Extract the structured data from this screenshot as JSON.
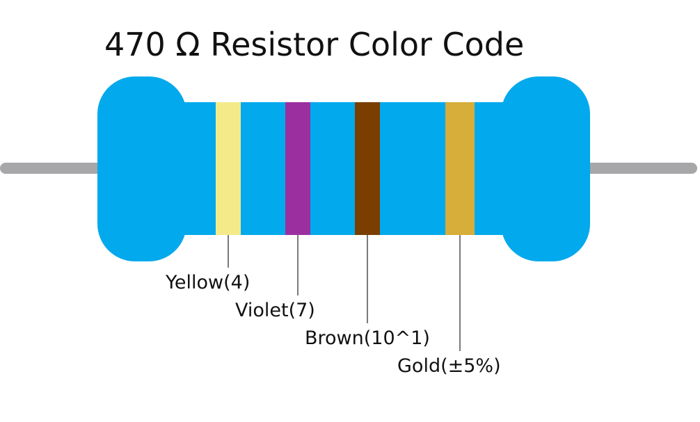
{
  "title": "470 Ω Resistor Color Code",
  "colors": {
    "background": "#ffffff",
    "body": "#02a9ec",
    "lead": "#a7a7a9",
    "leader_line": "#333333"
  },
  "bands": [
    {
      "color_name": "Yellow",
      "color": "#f4ea8a",
      "label": "Yellow(4)"
    },
    {
      "color_name": "Violet",
      "color": "#9b2fa0",
      "label": "Violet(7)"
    },
    {
      "color_name": "Brown",
      "color": "#7a3e00",
      "label": "Brown(10^1)"
    },
    {
      "color_name": "Gold",
      "color": "#d6ae39",
      "label": "Gold(±5%)"
    }
  ]
}
